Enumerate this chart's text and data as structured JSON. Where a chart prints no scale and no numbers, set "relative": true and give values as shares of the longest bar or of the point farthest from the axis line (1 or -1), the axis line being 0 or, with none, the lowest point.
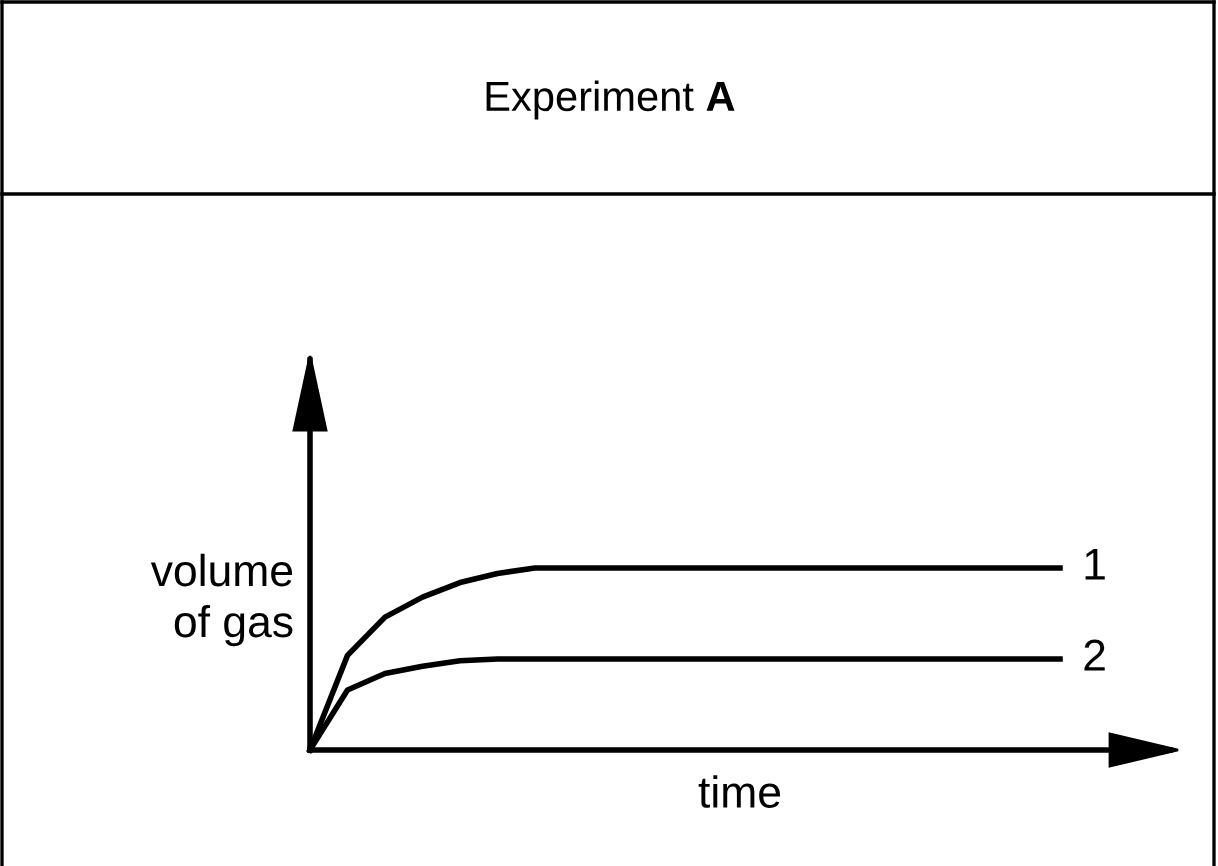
{
  "chart_data": {
    "type": "line",
    "title": "Experiment A",
    "xlabel": "time",
    "ylabel": "volume\nof gas",
    "relative": true,
    "categories": [
      null,
      null,
      null,
      null,
      null,
      null,
      null,
      null,
      null,
      null,
      null,
      null,
      null,
      null,
      null,
      null,
      null,
      null,
      null,
      null,
      null
    ],
    "series": [
      {
        "name": "1",
        "color": "#000000",
        "values": [
          0,
          0.52,
          0.73,
          0.84,
          0.92,
          0.97,
          1,
          1,
          1,
          1,
          1,
          1,
          1,
          1,
          1,
          1,
          1,
          1,
          1,
          1,
          1
        ]
      },
      {
        "name": "2",
        "color": "#000000",
        "values": [
          0,
          0.33,
          0.42,
          0.46,
          0.49,
          0.5,
          0.5,
          0.5,
          0.5,
          0.5,
          0.5,
          0.5,
          0.5,
          0.5,
          0.5,
          0.5,
          0.5,
          0.5,
          0.5,
          0.5,
          0.5
        ]
      }
    ],
    "grid": false,
    "legend": false,
    "marker": "none",
    "line_style": "solid"
  }
}
